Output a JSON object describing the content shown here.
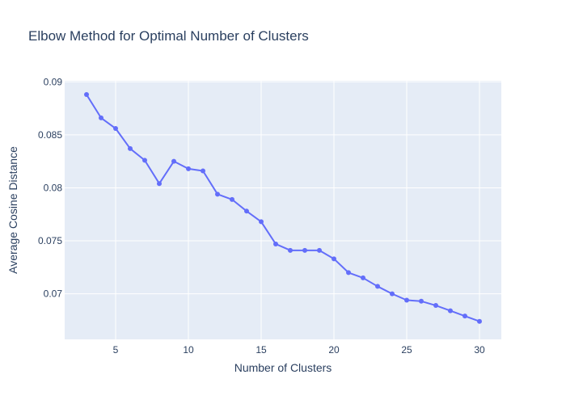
{
  "chart_data": {
    "type": "line",
    "title": "Elbow Method for Optimal Number of Clusters",
    "xlabel": "Number of Clusters",
    "ylabel": "Average Cosine Distance",
    "xlim": [
      1.5,
      31.5
    ],
    "ylim": [
      0.0657,
      0.0901
    ],
    "xticks": [
      5,
      10,
      15,
      20,
      25,
      30
    ],
    "xtick_labels": [
      "5",
      "10",
      "15",
      "20",
      "25",
      "30"
    ],
    "yticks": [
      0.07,
      0.075,
      0.08,
      0.085,
      0.09
    ],
    "ytick_labels": [
      "0.07",
      "0.075",
      "0.08",
      "0.085",
      "0.09"
    ],
    "grid": true,
    "colors": {
      "plot_background": "#e5ecf6",
      "grid": "#ffffff",
      "line": "#636efa",
      "text": "#2a3f5f"
    },
    "series": [
      {
        "x": [
          3,
          4,
          5,
          6,
          7,
          8,
          9,
          10,
          11,
          12,
          13,
          14,
          15,
          16,
          17,
          18,
          19,
          20,
          21,
          22,
          23,
          24,
          25,
          26,
          27,
          28,
          29,
          30
        ],
        "y": [
          0.0888,
          0.0866,
          0.0856,
          0.0837,
          0.0826,
          0.0804,
          0.0825,
          0.0818,
          0.0816,
          0.0794,
          0.0789,
          0.0778,
          0.0768,
          0.0747,
          0.0741,
          0.0741,
          0.0741,
          0.0733,
          0.072,
          0.0715,
          0.0707,
          0.07,
          0.0694,
          0.0693,
          0.0689,
          0.0684,
          0.0679,
          0.0674
        ]
      }
    ]
  }
}
